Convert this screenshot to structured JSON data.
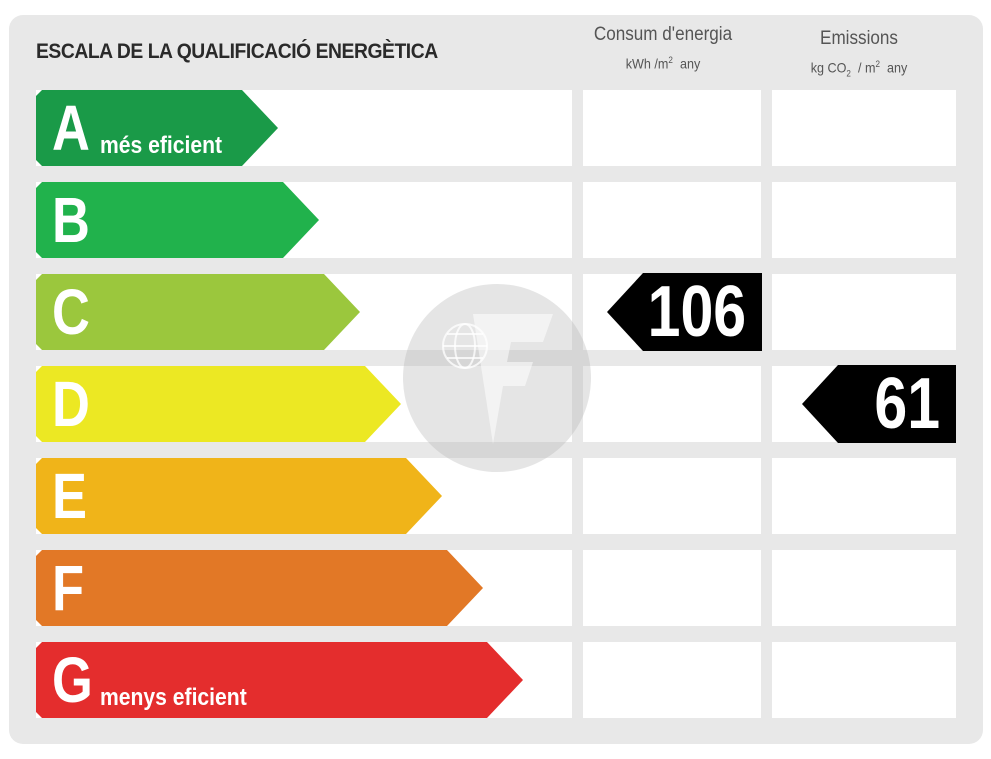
{
  "title": "ESCALA DE LA QUALIFICACIÓ ENERGÈTICA",
  "columns": {
    "consumption": {
      "label": "Consum d'energia",
      "unit_a": "kWh /m",
      "unit_sup": "2",
      "unit_b": "any"
    },
    "emissions": {
      "label": "Emissions",
      "unit_a": "kg CO",
      "unit_sub": "2",
      "unit_c": "/ m",
      "unit_sup": "2",
      "unit_b": "any"
    }
  },
  "ratings": [
    {
      "letter": "A",
      "desc": "més eficient",
      "color": "#1a9a48"
    },
    {
      "letter": "B",
      "desc": "",
      "color": "#21b24c"
    },
    {
      "letter": "C",
      "desc": "",
      "color": "#9bc73d"
    },
    {
      "letter": "D",
      "desc": "",
      "color": "#ece823"
    },
    {
      "letter": "E",
      "desc": "",
      "color": "#f0b419"
    },
    {
      "letter": "F",
      "desc": "",
      "color": "#e27826"
    },
    {
      "letter": "G",
      "desc": "menys eficient",
      "color": "#e42d2d"
    }
  ],
  "consumption_value": "106",
  "consumption_rating": "C",
  "emissions_value": "61",
  "emissions_rating": "D",
  "watermark_icon": "globe-f-logo-icon"
}
